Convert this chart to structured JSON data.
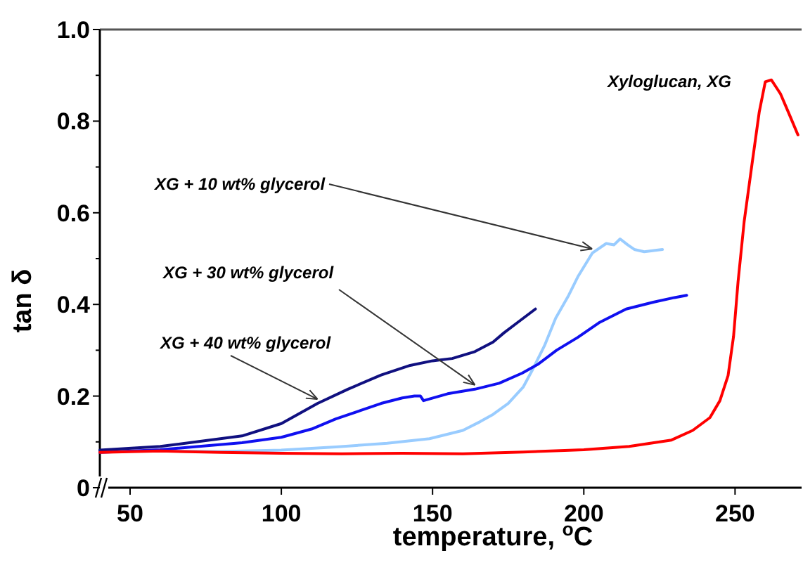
{
  "chart_data": {
    "type": "line",
    "xlabel": "temperature, $^{o}$C",
    "ylabel": "tan δ",
    "xlim": [
      40,
      272
    ],
    "xticks": [
      50,
      100,
      150,
      200,
      250
    ],
    "ylim": [
      0,
      1.0
    ],
    "yticks": [
      {
        "value": 0,
        "label": "0"
      },
      {
        "value": 0.1,
        "label": null
      },
      {
        "value": 0.2,
        "label": "0.2"
      },
      {
        "value": 0.3,
        "label": null
      },
      {
        "value": 0.4,
        "label": "0.4"
      },
      {
        "value": 0.5,
        "label": null
      },
      {
        "value": 0.6,
        "label": "0.6"
      },
      {
        "value": 0.7,
        "label": null
      },
      {
        "value": 0.8,
        "label": "0.8"
      },
      {
        "value": 0.9,
        "label": null
      },
      {
        "value": 1.0,
        "label": "1.0"
      }
    ],
    "grid": false,
    "legend": false,
    "marker": "none",
    "line_style": "solid",
    "series": [
      {
        "name": "XG + 10 wt% glycerol",
        "color": "#99ccff",
        "x": [
          60,
          80,
          100,
          118,
          135,
          149,
          160,
          165.7,
          170,
          175,
          180,
          183,
          187,
          190.7,
          195,
          198,
          202.8,
          207.4,
          210,
          212,
          214.5,
          216.7,
          220,
          223.6,
          226
        ],
        "values": [
          0.08,
          0.079,
          0.082,
          0.089,
          0.097,
          0.107,
          0.125,
          0.144,
          0.16,
          0.184,
          0.22,
          0.257,
          0.31,
          0.37,
          0.42,
          0.46,
          0.512,
          0.533,
          0.53,
          0.543,
          0.53,
          0.52,
          0.515,
          0.518,
          0.52
        ]
      },
      {
        "name": "XG + 30 wt% glycerol",
        "color": "#1010f0",
        "x": [
          40,
          60,
          87,
          100,
          110,
          118,
          126,
          133,
          140,
          144,
          146,
          147,
          155,
          164,
          172,
          179.6,
          185,
          191,
          198,
          205,
          214,
          223,
          230,
          234
        ],
        "values": [
          0.077,
          0.083,
          0.098,
          0.11,
          0.128,
          0.15,
          0.168,
          0.184,
          0.196,
          0.2,
          0.2,
          0.19,
          0.205,
          0.215,
          0.228,
          0.25,
          0.27,
          0.3,
          0.328,
          0.36,
          0.39,
          0.405,
          0.415,
          0.42
        ]
      },
      {
        "name": "XG + 40 wt% glycerol",
        "color": "#101080",
        "x": [
          40,
          60,
          87,
          100,
          112,
          122,
          133,
          142.6,
          150,
          156.5,
          164,
          170,
          173.6,
          178,
          182,
          184
        ],
        "values": [
          0.082,
          0.09,
          0.113,
          0.14,
          0.184,
          0.215,
          0.246,
          0.267,
          0.277,
          0.282,
          0.297,
          0.318,
          0.338,
          0.36,
          0.38,
          0.39
        ]
      },
      {
        "name": "Xyloglucan, XG",
        "color": "#ff0000",
        "x": [
          40,
          60,
          80,
          100,
          120,
          140,
          160,
          180,
          200,
          215,
          229,
          236,
          241.7,
          245,
          247.7,
          249.5,
          251,
          253,
          255.6,
          258,
          260,
          262,
          264,
          265,
          267.6,
          270.8
        ],
        "values": [
          0.077,
          0.08,
          0.077,
          0.075,
          0.074,
          0.075,
          0.074,
          0.078,
          0.083,
          0.09,
          0.104,
          0.125,
          0.153,
          0.19,
          0.245,
          0.33,
          0.45,
          0.58,
          0.706,
          0.82,
          0.886,
          0.89,
          0.87,
          0.86,
          0.82,
          0.77
        ]
      }
    ]
  }
}
